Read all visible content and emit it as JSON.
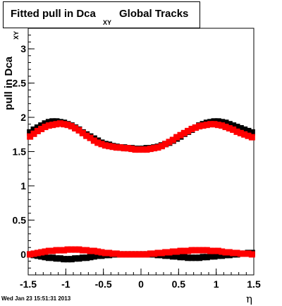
{
  "title": {
    "main": "Fitted pull in Dca",
    "sub": "XY",
    "tail": "Global Tracks"
  },
  "footer_text": "Wed Jan 23 15:51:31 2013",
  "chart_data": {
    "type": "scatter",
    "title": "Fitted pull in Dca XY Global Tracks",
    "xlabel": "η",
    "ylabel": "pull in Dca",
    "ylabel_sub": "XY",
    "xlim": [
      -1.5,
      1.5
    ],
    "ylim": [
      -0.3,
      3.3
    ],
    "x_ticks": [
      -1.5,
      -1,
      -0.5,
      0,
      0.5,
      1,
      1.5
    ],
    "x_tick_labels": [
      "-1.5",
      "-1",
      "-0.5",
      "0",
      "0.5",
      "1",
      "1.5"
    ],
    "y_ticks": [
      0,
      0.5,
      1,
      1.5,
      2,
      2.5,
      3
    ],
    "y_tick_labels": [
      "0",
      "0.5",
      "1",
      "1.5",
      "2",
      "2.5",
      "3"
    ],
    "grid": false,
    "legend": "none",
    "x": [
      -1.475,
      -1.425,
      -1.375,
      -1.325,
      -1.275,
      -1.225,
      -1.175,
      -1.125,
      -1.075,
      -1.025,
      -0.975,
      -0.925,
      -0.875,
      -0.825,
      -0.775,
      -0.725,
      -0.675,
      -0.625,
      -0.575,
      -0.525,
      -0.475,
      -0.425,
      -0.375,
      -0.325,
      -0.275,
      -0.225,
      -0.175,
      -0.125,
      -0.075,
      -0.025,
      0.025,
      0.075,
      0.125,
      0.175,
      0.225,
      0.275,
      0.325,
      0.375,
      0.425,
      0.475,
      0.525,
      0.575,
      0.625,
      0.675,
      0.725,
      0.775,
      0.825,
      0.875,
      0.925,
      0.975,
      1.025,
      1.075,
      1.125,
      1.175,
      1.225,
      1.275,
      1.325,
      1.375,
      1.425,
      1.475
    ],
    "series": [
      {
        "color": "#000000",
        "values": [
          1.78,
          1.82,
          1.85,
          1.88,
          1.91,
          1.93,
          1.94,
          1.94,
          1.93,
          1.92,
          1.9,
          1.88,
          1.85,
          1.82,
          1.78,
          1.75,
          1.72,
          1.69,
          1.66,
          1.63,
          1.61,
          1.6,
          1.58,
          1.57,
          1.56,
          1.56,
          1.55,
          1.55,
          1.54,
          1.54,
          1.54,
          1.55,
          1.55,
          1.56,
          1.57,
          1.59,
          1.61,
          1.63,
          1.66,
          1.69,
          1.72,
          1.76,
          1.79,
          1.82,
          1.85,
          1.88,
          1.9,
          1.92,
          1.93,
          1.94,
          1.94,
          1.93,
          1.92,
          1.9,
          1.88,
          1.86,
          1.84,
          1.82,
          1.8,
          1.78
        ]
      },
      {
        "color": "#ff0000",
        "values": [
          1.72,
          1.76,
          1.8,
          1.83,
          1.86,
          1.88,
          1.89,
          1.9,
          1.91,
          1.9,
          1.89,
          1.87,
          1.84,
          1.81,
          1.77,
          1.73,
          1.7,
          1.66,
          1.63,
          1.61,
          1.59,
          1.58,
          1.57,
          1.56,
          1.56,
          1.55,
          1.55,
          1.54,
          1.53,
          1.53,
          1.53,
          1.53,
          1.54,
          1.55,
          1.56,
          1.58,
          1.61,
          1.64,
          1.67,
          1.71,
          1.74,
          1.77,
          1.8,
          1.83,
          1.85,
          1.87,
          1.88,
          1.89,
          1.9,
          1.9,
          1.89,
          1.88,
          1.86,
          1.84,
          1.82,
          1.79,
          1.77,
          1.75,
          1.73,
          1.71
        ]
      },
      {
        "color": "#000000",
        "values": [
          0.0,
          -0.01,
          -0.02,
          -0.03,
          -0.04,
          -0.05,
          -0.05,
          -0.06,
          -0.06,
          -0.07,
          -0.07,
          -0.07,
          -0.06,
          -0.06,
          -0.05,
          -0.05,
          -0.04,
          -0.03,
          -0.02,
          -0.02,
          -0.01,
          -0.01,
          0.0,
          0.0,
          0.0,
          0.0,
          0.0,
          0.0,
          0.0,
          0.0,
          0.0,
          0.0,
          0.0,
          0.0,
          -0.01,
          -0.01,
          -0.02,
          -0.02,
          -0.03,
          -0.03,
          -0.04,
          -0.04,
          -0.05,
          -0.05,
          -0.05,
          -0.05,
          -0.04,
          -0.04,
          -0.03,
          -0.03,
          -0.02,
          -0.02,
          -0.01,
          -0.01,
          0.0,
          0.0,
          0.01,
          0.01,
          0.02,
          0.02
        ]
      },
      {
        "color": "#ff0000",
        "values": [
          0.0,
          0.01,
          0.02,
          0.03,
          0.04,
          0.05,
          0.05,
          0.06,
          0.06,
          0.06,
          0.07,
          0.07,
          0.07,
          0.07,
          0.06,
          0.06,
          0.05,
          0.05,
          0.04,
          0.03,
          0.02,
          0.02,
          0.01,
          0.01,
          0.0,
          0.0,
          0.0,
          0.0,
          0.0,
          0.0,
          0.0,
          0.0,
          0.01,
          0.01,
          0.02,
          0.02,
          0.03,
          0.03,
          0.04,
          0.04,
          0.05,
          0.05,
          0.05,
          0.06,
          0.06,
          0.06,
          0.06,
          0.06,
          0.05,
          0.05,
          0.05,
          0.04,
          0.03,
          0.03,
          0.02,
          0.02,
          0.01,
          0.01,
          0.01,
          0.0
        ]
      }
    ]
  }
}
